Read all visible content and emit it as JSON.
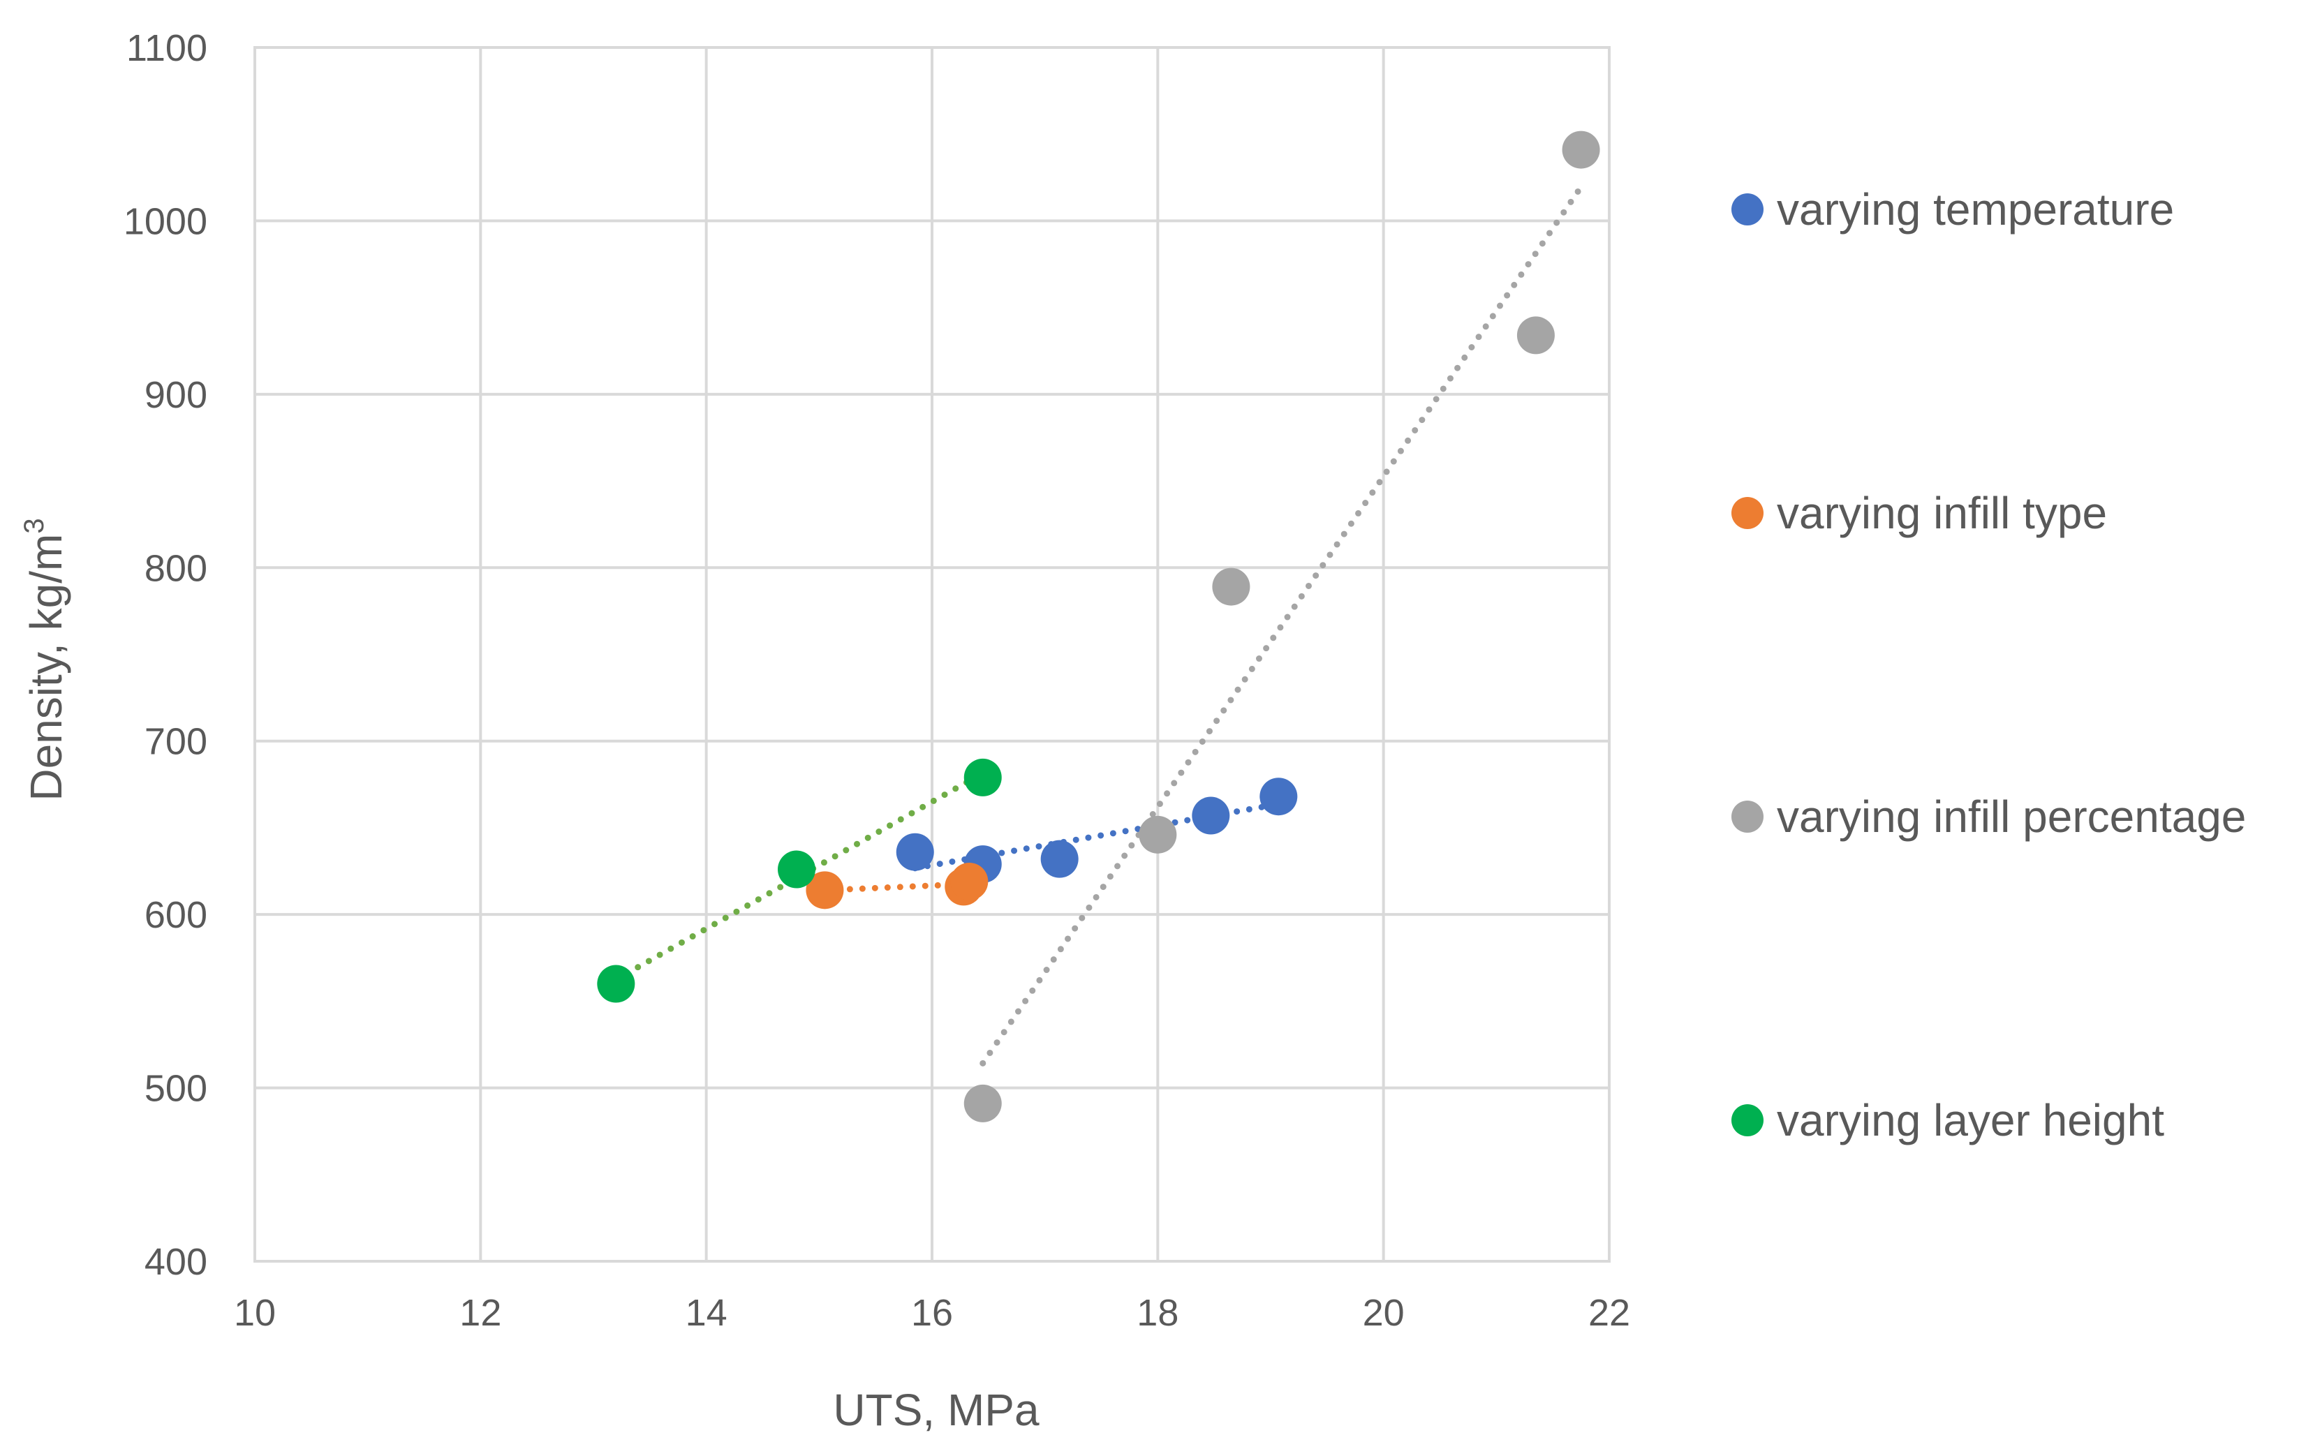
{
  "chart_data": {
    "type": "scatter",
    "title": "",
    "xlabel": "UTS, MPa",
    "ylabel_main": "Density, kg/m",
    "ylabel_sup": "3",
    "xlim": [
      10,
      22
    ],
    "ylim": [
      400,
      1100
    ],
    "xticks": [
      10,
      12,
      14,
      16,
      18,
      20,
      22
    ],
    "yticks": [
      400,
      500,
      600,
      700,
      800,
      900,
      1000,
      1100
    ],
    "grid": true,
    "legend_position": "right",
    "trendline": "linear, dotted",
    "series": [
      {
        "name": "varying temperature",
        "color": "#4472C4",
        "points": [
          [
            15.85,
            636
          ],
          [
            16.45,
            629
          ],
          [
            17.13,
            632
          ],
          [
            18.47,
            657
          ],
          [
            19.07,
            668
          ]
        ]
      },
      {
        "name": "varying infill type",
        "color": "#ED7D31",
        "points": [
          [
            15.05,
            614
          ],
          [
            16.28,
            616
          ],
          [
            16.33,
            619
          ]
        ]
      },
      {
        "name": "varying infill percentage",
        "color": "#A5A5A5",
        "points": [
          [
            16.45,
            491
          ],
          [
            18.0,
            646
          ],
          [
            18.65,
            789
          ],
          [
            21.35,
            934
          ],
          [
            21.75,
            1041
          ]
        ]
      },
      {
        "name": "varying layer height",
        "color": "#00B050",
        "trend_color": "#70AD47",
        "points": [
          [
            13.2,
            560
          ],
          [
            14.8,
            626
          ],
          [
            16.45,
            679
          ]
        ]
      }
    ]
  }
}
